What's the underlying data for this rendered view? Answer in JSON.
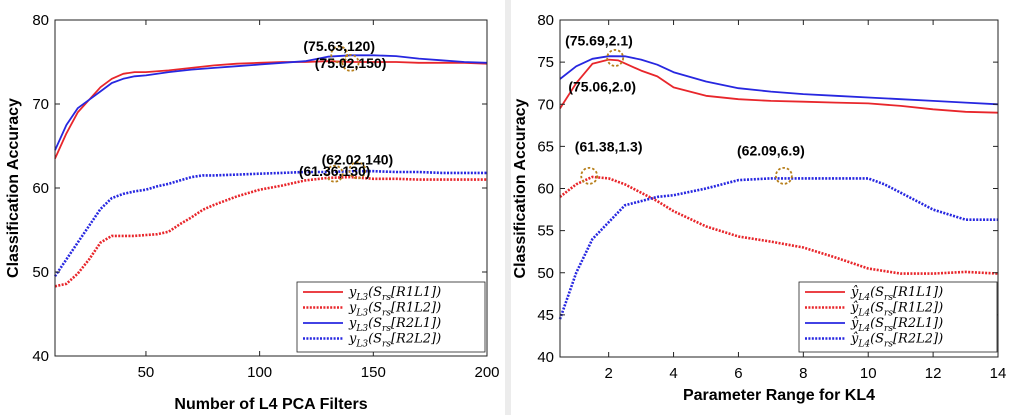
{
  "chart_data": [
    {
      "type": "line",
      "title": "",
      "xlabel": "Number of L4 PCA Filters",
      "ylabel": "Classification Accuracy",
      "xlim": [
        10,
        200
      ],
      "ylim": [
        40,
        80
      ],
      "xticks": [
        50,
        100,
        150,
        200
      ],
      "yticks": [
        40,
        50,
        60,
        70,
        80
      ],
      "legend_position": "bottom-right",
      "series": [
        {
          "name": "y_L3(S_rs[R1L1])",
          "color": "#e8262b",
          "style": "solid",
          "x": [
            10,
            15,
            20,
            25,
            30,
            35,
            40,
            45,
            50,
            60,
            70,
            80,
            90,
            100,
            110,
            120,
            130,
            140,
            150,
            160,
            170,
            180,
            190,
            200
          ],
          "y": [
            63.5,
            66.5,
            69,
            70.5,
            72,
            73,
            73.6,
            73.8,
            73.8,
            74.0,
            74.3,
            74.6,
            74.8,
            74.9,
            75.0,
            75.0,
            75.1,
            75.0,
            75.0,
            75.0,
            74.9,
            74.9,
            74.9,
            74.8
          ]
        },
        {
          "name": "y_L3(S_rs[R1L2])",
          "color": "#e8262b",
          "style": "dotted",
          "x": [
            10,
            15,
            20,
            25,
            30,
            35,
            40,
            45,
            50,
            55,
            60,
            65,
            70,
            75,
            80,
            90,
            100,
            110,
            120,
            130,
            140,
            150,
            160,
            170,
            180,
            190,
            200
          ],
          "y": [
            48.3,
            48.6,
            49.8,
            51.5,
            53.5,
            54.3,
            54.3,
            54.3,
            54.4,
            54.5,
            54.8,
            55.7,
            56.5,
            57.4,
            58.0,
            59.0,
            59.8,
            60.3,
            60.9,
            61.2,
            61.3,
            61.1,
            61.1,
            61.0,
            61.0,
            61.0,
            61.0
          ]
        },
        {
          "name": "y_L3(S_rs[R2L1])",
          "color": "#2727e0",
          "style": "solid",
          "x": [
            10,
            15,
            20,
            25,
            30,
            35,
            40,
            45,
            50,
            60,
            70,
            80,
            90,
            100,
            110,
            120,
            130,
            140,
            150,
            160,
            170,
            180,
            190,
            200
          ],
          "y": [
            64.5,
            67.5,
            69.5,
            70.5,
            71.5,
            72.5,
            73.0,
            73.3,
            73.4,
            73.8,
            74.1,
            74.3,
            74.5,
            74.7,
            74.9,
            75.1,
            75.63,
            75.8,
            75.8,
            75.7,
            75.4,
            75.2,
            75.0,
            74.9
          ]
        },
        {
          "name": "y_L3(S_rs[R2L2])",
          "color": "#2727e0",
          "style": "dotted",
          "x": [
            10,
            15,
            20,
            25,
            30,
            35,
            40,
            45,
            50,
            55,
            60,
            65,
            70,
            75,
            80,
            90,
            100,
            110,
            120,
            130,
            140,
            150,
            160,
            170,
            180,
            190,
            200
          ],
          "y": [
            49.5,
            51.5,
            53.5,
            55.5,
            57.5,
            58.8,
            59.3,
            59.6,
            59.8,
            60.2,
            60.5,
            60.9,
            61.3,
            61.5,
            61.5,
            61.6,
            61.7,
            61.8,
            61.9,
            61.9,
            62.0,
            62.0,
            61.9,
            61.9,
            61.8,
            61.8,
            61.8
          ]
        }
      ],
      "annotations": [
        {
          "text": "(75.63,120)",
          "x": 135,
          "y": 76.3
        },
        {
          "text": "(75.02,150)",
          "x": 140,
          "y": 74.3
        },
        {
          "text": "(62.02,140)",
          "x": 143,
          "y": 62.8
        },
        {
          "text": "(61.36,130)",
          "x": 133,
          "y": 61.4
        }
      ]
    },
    {
      "type": "line",
      "title": "",
      "xlabel": "Parameter Range for KL4",
      "ylabel": "Classification Accuracy",
      "xlim": [
        0.5,
        14
      ],
      "ylim": [
        40,
        80
      ],
      "xticks": [
        2,
        4,
        6,
        8,
        10,
        12,
        14
      ],
      "yticks": [
        40,
        45,
        50,
        55,
        60,
        65,
        70,
        75,
        80
      ],
      "legend_position": "bottom-right",
      "series": [
        {
          "name": "ŷ_L4(S_rs[R1L1])",
          "color": "#e8262b",
          "style": "solid",
          "x": [
            0.5,
            1.0,
            1.5,
            2.0,
            2.3,
            2.7,
            3.0,
            3.5,
            4.0,
            5.0,
            6.0,
            7.0,
            8.0,
            9.0,
            10.0,
            11.0,
            12.0,
            13.0,
            14.0
          ],
          "y": [
            69.5,
            72.5,
            74.8,
            75.3,
            75.2,
            74.5,
            74.0,
            73.3,
            72.0,
            71.0,
            70.6,
            70.4,
            70.3,
            70.2,
            70.1,
            69.8,
            69.4,
            69.1,
            69.0
          ]
        },
        {
          "name": "ŷ_L4(S_rs[R1L2])",
          "color": "#e8262b",
          "style": "dotted",
          "x": [
            0.5,
            1.0,
            1.5,
            2.0,
            2.5,
            3.0,
            3.5,
            4.0,
            5.0,
            6.0,
            7.0,
            8.0,
            9.0,
            10.0,
            11.0,
            12.0,
            13.0,
            14.0
          ],
          "y": [
            59.0,
            60.5,
            61.38,
            61.2,
            60.5,
            59.5,
            58.5,
            57.3,
            55.5,
            54.3,
            53.7,
            53.0,
            51.8,
            50.5,
            49.9,
            49.9,
            50.1,
            49.9
          ]
        },
        {
          "name": "ŷ_L4(S_rs[R2L1])",
          "color": "#2727e0",
          "style": "solid",
          "x": [
            0.5,
            1.0,
            1.5,
            2.0,
            2.5,
            3.0,
            3.5,
            4.0,
            5.0,
            6.0,
            7.0,
            8.0,
            9.0,
            10.0,
            11.0,
            12.0,
            13.0,
            14.0
          ],
          "y": [
            73.0,
            74.5,
            75.4,
            75.7,
            75.69,
            75.3,
            74.7,
            73.8,
            72.7,
            71.9,
            71.5,
            71.2,
            71.0,
            70.8,
            70.6,
            70.4,
            70.2,
            70.0
          ]
        },
        {
          "name": "ŷ_L4(S_rs[R2L2])",
          "color": "#2727e0",
          "style": "dotted",
          "x": [
            0.5,
            1.0,
            1.5,
            2.0,
            2.5,
            3.0,
            3.5,
            4.0,
            5.0,
            6.0,
            7.0,
            8.0,
            9.0,
            10.0,
            10.5,
            11.0,
            12.0,
            13.0,
            14.0
          ],
          "y": [
            44.5,
            50.0,
            54.0,
            56.0,
            58.0,
            58.5,
            59.0,
            59.2,
            60.0,
            61.0,
            61.2,
            61.2,
            61.2,
            61.2,
            60.5,
            59.5,
            57.5,
            56.3,
            56.3
          ]
        }
      ],
      "annotations": [
        {
          "text": "(75.69,2.1)",
          "x": 1.7,
          "y": 77.0
        },
        {
          "text": "(75.06,2.0)",
          "x": 1.8,
          "y": 71.5
        },
        {
          "text": "(61.38,1.3)",
          "x": 2.0,
          "y": 64.4
        },
        {
          "text": "(62.09,6.9)",
          "x": 7.0,
          "y": 63.9
        }
      ],
      "markers": [
        {
          "x": 2.2,
          "y": 75.5
        },
        {
          "x": 1.4,
          "y": 61.5
        },
        {
          "x": 7.4,
          "y": 61.5
        }
      ]
    }
  ]
}
